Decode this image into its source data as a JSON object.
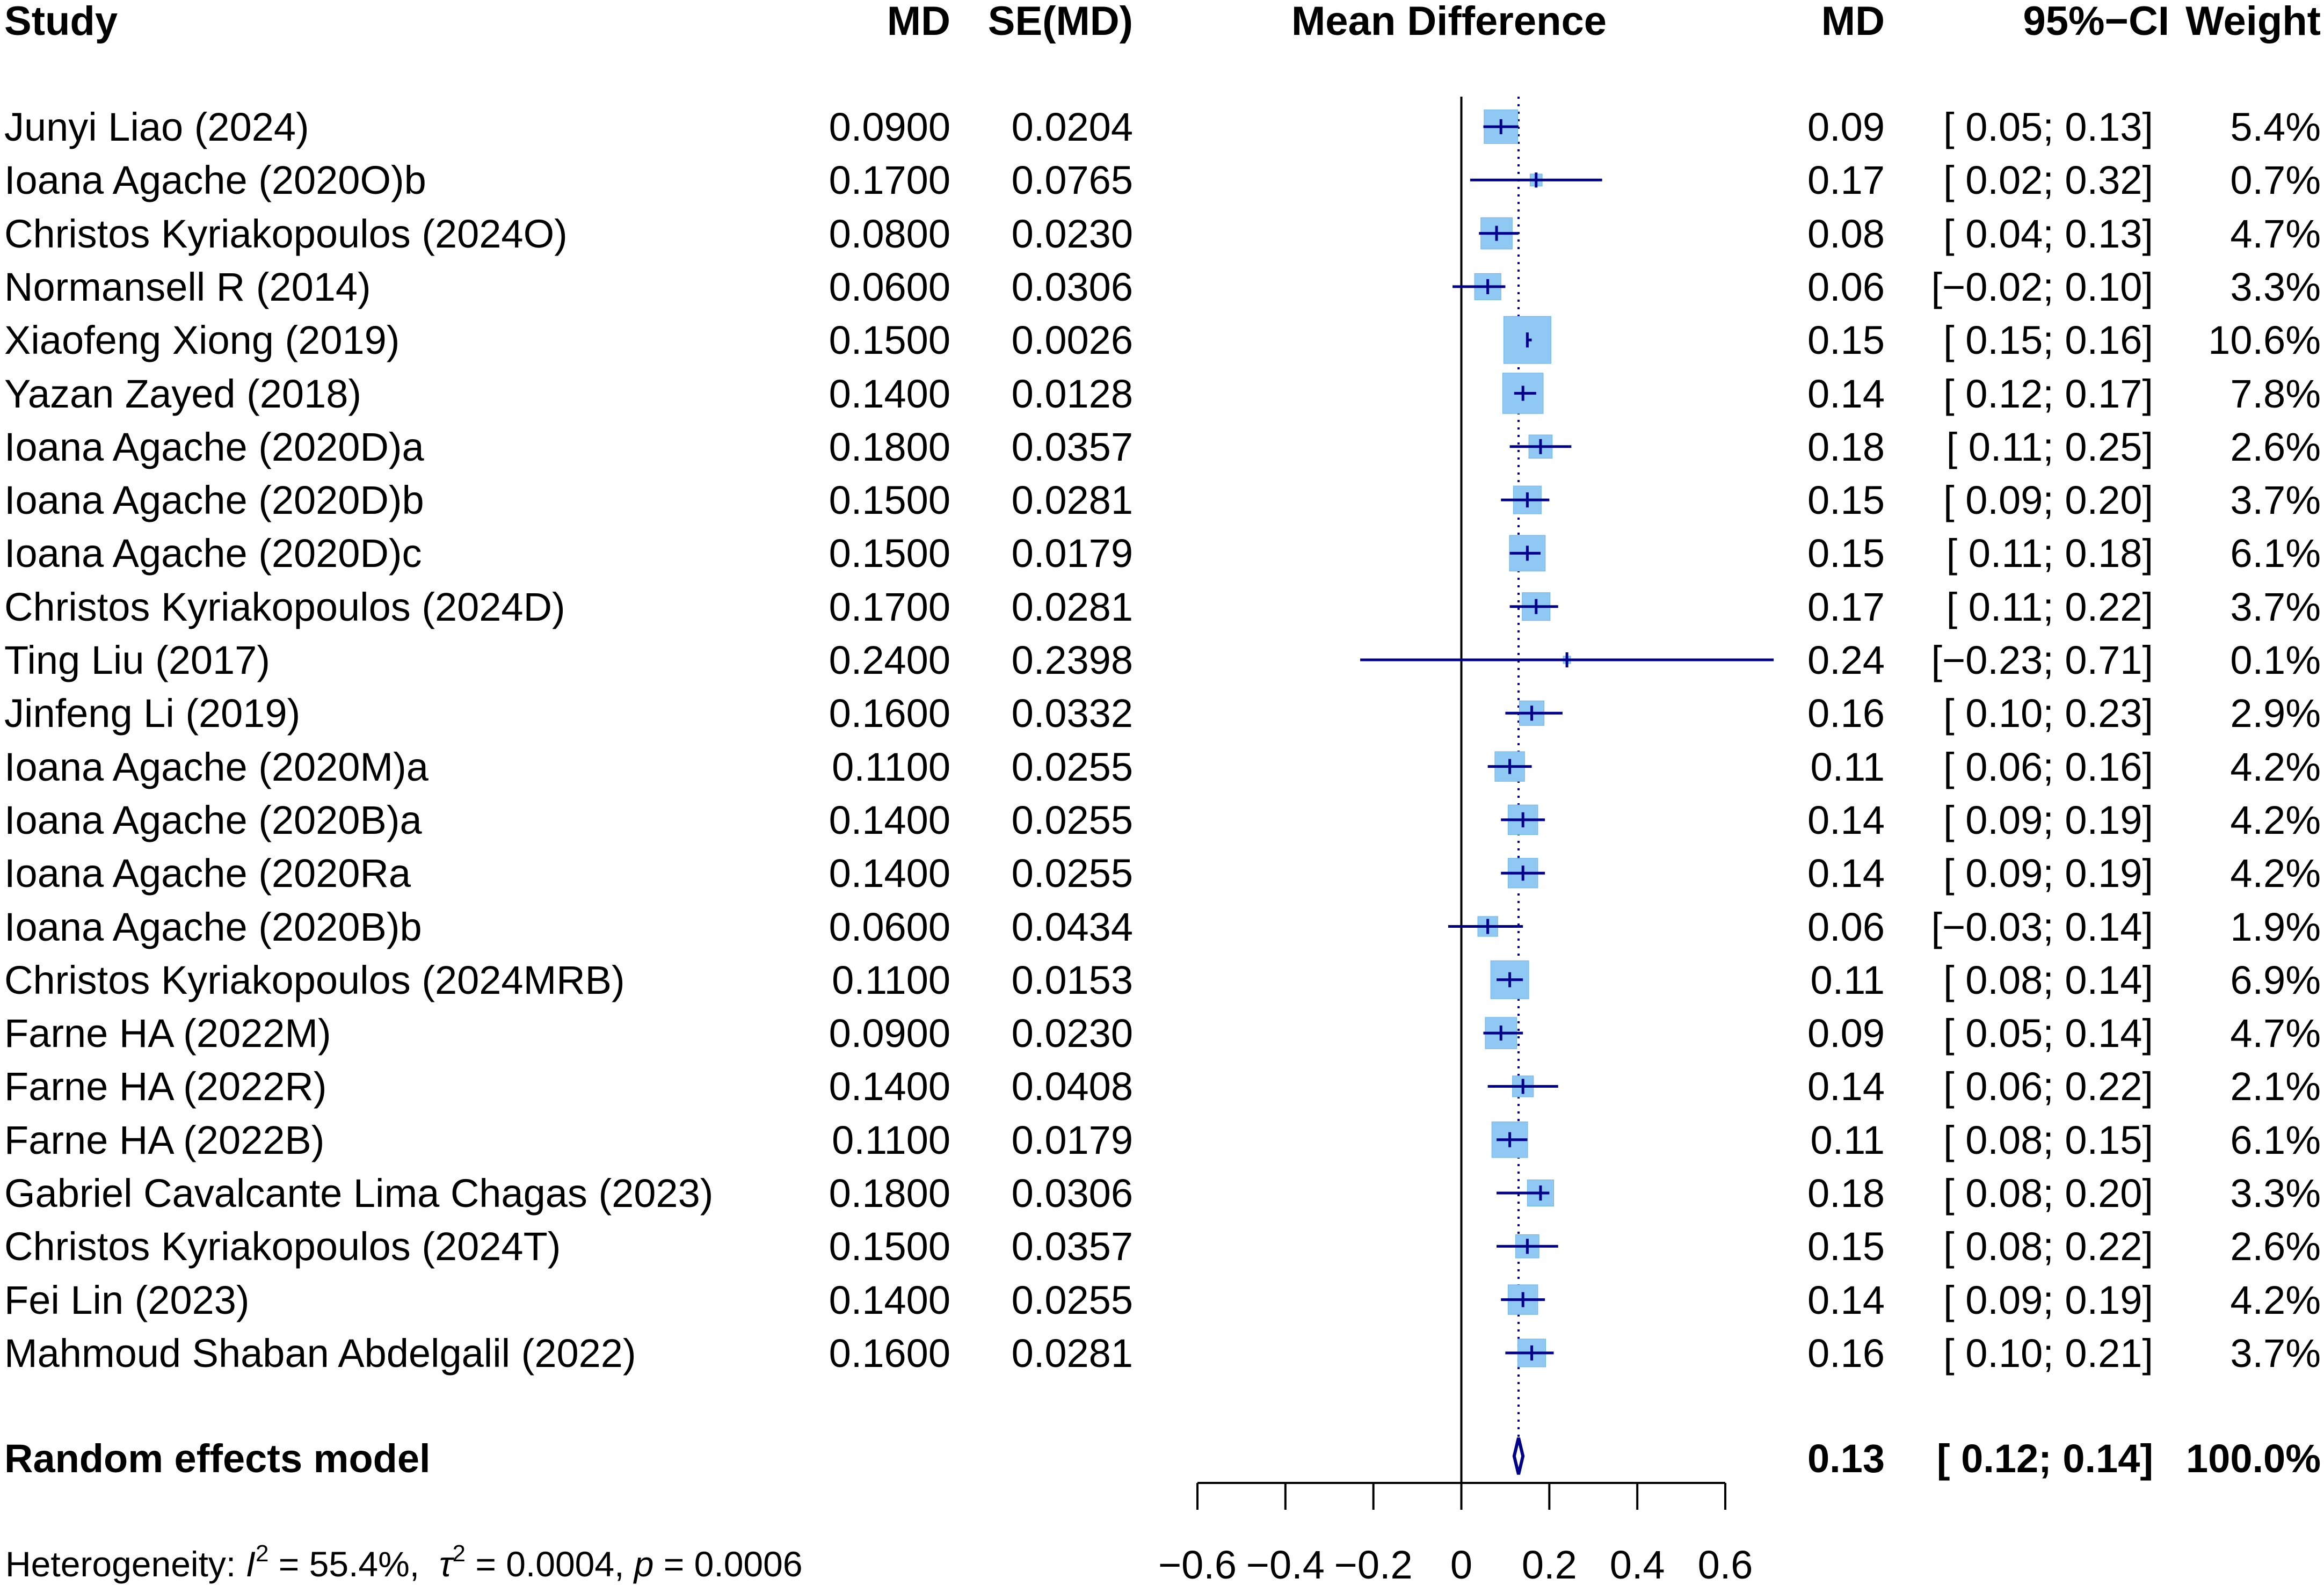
{
  "headers": {
    "study": "Study",
    "md": "MD",
    "se": "SE(MD)",
    "plot": "Mean Difference",
    "md_right": "MD",
    "ci": "95%−CI",
    "weight": "Weight"
  },
  "studies": [
    {
      "name": "Junyi Liao (2024)",
      "md": "0.0900",
      "se": "0.0204",
      "md_r": "0.09",
      "ci": "[ 0.05; 0.13]",
      "weight": "5.4%"
    },
    {
      "name": "Ioana Agache (2020O)b",
      "md": "0.1700",
      "se": "0.0765",
      "md_r": "0.17",
      "ci": "[ 0.02; 0.32]",
      "weight": "0.7%"
    },
    {
      "name": "Christos Kyriakopoulos (2024O)",
      "md": "0.0800",
      "se": "0.0230",
      "md_r": "0.08",
      "ci": "[ 0.04; 0.13]",
      "weight": "4.7%"
    },
    {
      "name": "Normansell R (2014)",
      "md": "0.0600",
      "se": "0.0306",
      "md_r": "0.06",
      "ci": "[−0.02; 0.10]",
      "weight": "3.3%"
    },
    {
      "name": "Xiaofeng Xiong (2019)",
      "md": "0.1500",
      "se": "0.0026",
      "md_r": "0.15",
      "ci": "[ 0.15; 0.16]",
      "weight": "10.6%"
    },
    {
      "name": "Yazan Zayed (2018)",
      "md": "0.1400",
      "se": "0.0128",
      "md_r": "0.14",
      "ci": "[ 0.12; 0.17]",
      "weight": "7.8%"
    },
    {
      "name": "Ioana Agache (2020D)a",
      "md": "0.1800",
      "se": "0.0357",
      "md_r": "0.18",
      "ci": "[ 0.11; 0.25]",
      "weight": "2.6%"
    },
    {
      "name": "Ioana Agache (2020D)b",
      "md": "0.1500",
      "se": "0.0281",
      "md_r": "0.15",
      "ci": "[ 0.09; 0.20]",
      "weight": "3.7%"
    },
    {
      "name": "Ioana Agache (2020D)c",
      "md": "0.1500",
      "se": "0.0179",
      "md_r": "0.15",
      "ci": "[ 0.11; 0.18]",
      "weight": "6.1%"
    },
    {
      "name": "Christos Kyriakopoulos (2024D)",
      "md": "0.1700",
      "se": "0.0281",
      "md_r": "0.17",
      "ci": "[ 0.11; 0.22]",
      "weight": "3.7%"
    },
    {
      "name": "Ting Liu (2017)",
      "md": "0.2400",
      "se": "0.2398",
      "md_r": "0.24",
      "ci": "[−0.23; 0.71]",
      "weight": "0.1%"
    },
    {
      "name": "Jinfeng Li (2019)",
      "md": "0.1600",
      "se": "0.0332",
      "md_r": "0.16",
      "ci": "[ 0.10; 0.23]",
      "weight": "2.9%"
    },
    {
      "name": "Ioana Agache (2020M)a",
      "md": "0.1100",
      "se": "0.0255",
      "md_r": "0.11",
      "ci": "[ 0.06; 0.16]",
      "weight": "4.2%"
    },
    {
      "name": "Ioana Agache (2020B)a",
      "md": "0.1400",
      "se": "0.0255",
      "md_r": "0.14",
      "ci": "[ 0.09; 0.19]",
      "weight": "4.2%"
    },
    {
      "name": "Ioana Agache (2020Ra",
      "md": "0.1400",
      "se": "0.0255",
      "md_r": "0.14",
      "ci": "[ 0.09; 0.19]",
      "weight": "4.2%"
    },
    {
      "name": "Ioana Agache (2020B)b",
      "md": "0.0600",
      "se": "0.0434",
      "md_r": "0.06",
      "ci": "[−0.03; 0.14]",
      "weight": "1.9%"
    },
    {
      "name": "Christos Kyriakopoulos (2024MRB)",
      "md": "0.1100",
      "se": "0.0153",
      "md_r": "0.11",
      "ci": "[ 0.08; 0.14]",
      "weight": "6.9%"
    },
    {
      "name": "Farne HA (2022M)",
      "md": "0.0900",
      "se": "0.0230",
      "md_r": "0.09",
      "ci": "[ 0.05; 0.14]",
      "weight": "4.7%"
    },
    {
      "name": "Farne HA (2022R)",
      "md": "0.1400",
      "se": "0.0408",
      "md_r": "0.14",
      "ci": "[ 0.06; 0.22]",
      "weight": "2.1%"
    },
    {
      "name": "Farne HA (2022B)",
      "md": "0.1100",
      "se": "0.0179",
      "md_r": "0.11",
      "ci": "[ 0.08; 0.15]",
      "weight": "6.1%"
    },
    {
      "name": "Gabriel Cavalcante Lima Chagas (2023)",
      "md": "0.1800",
      "se": "0.0306",
      "md_r": "0.18",
      "ci": "[ 0.08; 0.20]",
      "weight": "3.3%"
    },
    {
      "name": "Christos Kyriakopoulos (2024T)",
      "md": "0.1500",
      "se": "0.0357",
      "md_r": "0.15",
      "ci": "[ 0.08; 0.22]",
      "weight": "2.6%"
    },
    {
      "name": "Fei Lin (2023)",
      "md": "0.1400",
      "se": "0.0255",
      "md_r": "0.14",
      "ci": "[ 0.09; 0.19]",
      "weight": "4.2%"
    },
    {
      "name": "Mahmoud Shaban Abdelgalil (2022)",
      "md": "0.1600",
      "se": "0.0281",
      "md_r": "0.16",
      "ci": "[ 0.10; 0.21]",
      "weight": "3.7%"
    }
  ],
  "summary": {
    "label": "Random effects model",
    "md_r": "0.13",
    "ci": "[ 0.12; 0.14]",
    "weight": "100.0%"
  },
  "heterogeneity": {
    "prefix": "Heterogeneity: ",
    "i2_symbol": "I",
    "i2_value": " = 55.4%,  ",
    "tau_symbol": "τ",
    "tau_value": " = 0.0004, ",
    "p_symbol": "p",
    "p_value": " = 0.0006",
    "sup": "2"
  },
  "colors": {
    "box_fill": "#8fc8f2",
    "line": "#00008b",
    "axis": "#000000"
  },
  "chart_data": {
    "type": "forest",
    "title": "Mean Difference",
    "xlim": [
      -0.6,
      0.6
    ],
    "xticks": [
      -0.6,
      -0.4,
      -0.2,
      0,
      0.2,
      0.4,
      0.6
    ],
    "xtick_labels": [
      "−0.6",
      "−0.4",
      "−0.2",
      "0",
      "0.2",
      "0.4",
      "0.6"
    ],
    "null_line": 0,
    "pooled_line": 0.13,
    "series": [
      {
        "name": "Junyi Liao (2024)",
        "md": 0.09,
        "lower": 0.05,
        "upper": 0.13,
        "weight": 5.4
      },
      {
        "name": "Ioana Agache (2020O)b",
        "md": 0.17,
        "lower": 0.02,
        "upper": 0.32,
        "weight": 0.7
      },
      {
        "name": "Christos Kyriakopoulos (2024O)",
        "md": 0.08,
        "lower": 0.04,
        "upper": 0.13,
        "weight": 4.7
      },
      {
        "name": "Normansell R (2014)",
        "md": 0.06,
        "lower": -0.02,
        "upper": 0.1,
        "weight": 3.3
      },
      {
        "name": "Xiaofeng Xiong (2019)",
        "md": 0.15,
        "lower": 0.15,
        "upper": 0.16,
        "weight": 10.6
      },
      {
        "name": "Yazan Zayed (2018)",
        "md": 0.14,
        "lower": 0.12,
        "upper": 0.17,
        "weight": 7.8
      },
      {
        "name": "Ioana Agache (2020D)a",
        "md": 0.18,
        "lower": 0.11,
        "upper": 0.25,
        "weight": 2.6
      },
      {
        "name": "Ioana Agache (2020D)b",
        "md": 0.15,
        "lower": 0.09,
        "upper": 0.2,
        "weight": 3.7
      },
      {
        "name": "Ioana Agache (2020D)c",
        "md": 0.15,
        "lower": 0.11,
        "upper": 0.18,
        "weight": 6.1
      },
      {
        "name": "Christos Kyriakopoulos (2024D)",
        "md": 0.17,
        "lower": 0.11,
        "upper": 0.22,
        "weight": 3.7
      },
      {
        "name": "Ting Liu (2017)",
        "md": 0.24,
        "lower": -0.23,
        "upper": 0.71,
        "weight": 0.1
      },
      {
        "name": "Jinfeng Li (2019)",
        "md": 0.16,
        "lower": 0.1,
        "upper": 0.23,
        "weight": 2.9
      },
      {
        "name": "Ioana Agache (2020M)a",
        "md": 0.11,
        "lower": 0.06,
        "upper": 0.16,
        "weight": 4.2
      },
      {
        "name": "Ioana Agache (2020B)a",
        "md": 0.14,
        "lower": 0.09,
        "upper": 0.19,
        "weight": 4.2
      },
      {
        "name": "Ioana Agache (2020Ra",
        "md": 0.14,
        "lower": 0.09,
        "upper": 0.19,
        "weight": 4.2
      },
      {
        "name": "Ioana Agache (2020B)b",
        "md": 0.06,
        "lower": -0.03,
        "upper": 0.14,
        "weight": 1.9
      },
      {
        "name": "Christos Kyriakopoulos (2024MRB)",
        "md": 0.11,
        "lower": 0.08,
        "upper": 0.14,
        "weight": 6.9
      },
      {
        "name": "Farne HA (2022M)",
        "md": 0.09,
        "lower": 0.05,
        "upper": 0.14,
        "weight": 4.7
      },
      {
        "name": "Farne HA (2022R)",
        "md": 0.14,
        "lower": 0.06,
        "upper": 0.22,
        "weight": 2.1
      },
      {
        "name": "Farne HA (2022B)",
        "md": 0.11,
        "lower": 0.08,
        "upper": 0.15,
        "weight": 6.1
      },
      {
        "name": "Gabriel Cavalcante Lima Chagas (2023)",
        "md": 0.18,
        "lower": 0.08,
        "upper": 0.2,
        "weight": 3.3
      },
      {
        "name": "Christos Kyriakopoulos (2024T)",
        "md": 0.15,
        "lower": 0.08,
        "upper": 0.22,
        "weight": 2.6
      },
      {
        "name": "Fei Lin (2023)",
        "md": 0.14,
        "lower": 0.09,
        "upper": 0.19,
        "weight": 4.2
      },
      {
        "name": "Mahmoud Shaban Abdelgalil (2022)",
        "md": 0.16,
        "lower": 0.1,
        "upper": 0.21,
        "weight": 3.7
      }
    ],
    "pooled": {
      "md": 0.13,
      "lower": 0.12,
      "upper": 0.14,
      "weight": 100.0
    }
  }
}
